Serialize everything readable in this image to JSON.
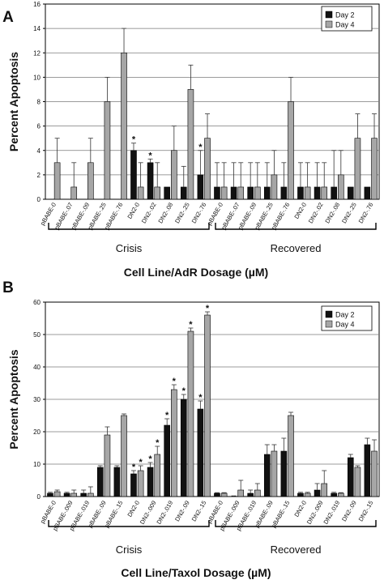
{
  "colors": {
    "day2": "#111111",
    "day4": "#a6a6a6",
    "grid": "#7a7a7a",
    "text": "#111111"
  },
  "chart_data": [
    {
      "panel_letter": "A",
      "type": "bar",
      "ylabel": "Percent Apoptosis",
      "xlabel": "Cell Line/AdR Dosage (µM)",
      "ylim": [
        0,
        16
      ],
      "yticks": [
        0,
        2,
        4,
        6,
        8,
        10,
        12,
        14,
        16
      ],
      "grid": true,
      "legend": {
        "position": "top-right",
        "entries": [
          "Day 2",
          "Day 4"
        ]
      },
      "groups": [
        "Crisis",
        "Recovered"
      ],
      "categories": [
        "pBABE-0",
        "pBABE-.07",
        "pBABE-.09",
        "pBABE-.25",
        "pBABE-.76",
        "DN2-0",
        "DN2-.02",
        "DN2-.08",
        "DN2-.25",
        "DN2-.76",
        "pBABE-0",
        "pBABE-.07",
        "pBABE-.09",
        "pBABE-.25",
        "pBABE-.76",
        "DN2-0",
        "DN2-.02",
        "DN2-.08",
        "DN2-.25",
        "DN2-.76"
      ],
      "series": [
        {
          "name": "Day 2",
          "values": [
            0,
            0,
            0,
            0,
            0,
            4,
            3,
            1,
            1,
            2,
            1,
            1,
            1,
            1,
            1,
            1,
            1,
            1,
            1,
            1
          ],
          "errors": [
            0,
            0,
            0,
            0,
            0,
            0.6,
            0.3,
            0,
            1.7,
            2,
            2,
            2,
            2,
            2,
            2,
            2,
            2,
            3,
            0,
            0
          ]
        },
        {
          "name": "Day 4",
          "values": [
            3,
            1,
            3,
            8,
            12,
            1,
            1,
            4,
            9,
            5,
            1,
            1,
            1,
            2,
            8,
            1,
            1,
            2,
            5,
            5
          ],
          "errors": [
            2,
            2,
            2,
            2,
            2,
            2,
            2,
            2,
            2,
            2,
            2,
            2,
            2,
            2,
            2,
            2,
            2,
            2,
            2,
            2
          ]
        }
      ],
      "asterisks": [
        {
          "series": 0,
          "index": 5
        },
        {
          "series": 0,
          "index": 6
        },
        {
          "series": 0,
          "index": 9
        }
      ]
    },
    {
      "panel_letter": "B",
      "type": "bar",
      "ylabel": "Percent Apoptosis",
      "xlabel": "Cell Line/Taxol Dosage (µM)",
      "ylim": [
        0,
        60
      ],
      "yticks": [
        0,
        10,
        20,
        30,
        40,
        50,
        60
      ],
      "grid": true,
      "legend": {
        "position": "top-right",
        "entries": [
          "Day 2",
          "Day 4"
        ]
      },
      "groups": [
        "Crisis",
        "Recovered"
      ],
      "categories": [
        "pBABE-0",
        "pBABE-.009",
        "pBABE-.019",
        "pBABE-.09",
        "pBABE-.15",
        "DN2-0",
        "DN2-.009",
        "DN2-.019",
        "DN2-.09",
        "DN2-.15",
        "pBABE-0",
        "pBABE-.009",
        "pBABE-.019",
        "pBABE-.09",
        "pBABE-.15",
        "DN2-0",
        "DN2-.009",
        "DN2-.019",
        "DN2-.09",
        "DN2-.15"
      ],
      "series": [
        {
          "name": "Day 2",
          "values": [
            1,
            1,
            1,
            9,
            9,
            7,
            9,
            22,
            30,
            27,
            1,
            0,
            1,
            13,
            14,
            1,
            2,
            1,
            12,
            16
          ],
          "errors": [
            0.3,
            0.3,
            1,
            0.5,
            0.5,
            1,
            1.5,
            2,
            1.5,
            2.5,
            0.2,
            0.2,
            1,
            3,
            4,
            0.3,
            2,
            0.3,
            1,
            2
          ]
        },
        {
          "name": "Day 4",
          "values": [
            1.5,
            1,
            1,
            19,
            25,
            8,
            13,
            33,
            51,
            56,
            1,
            2,
            2,
            14,
            25,
            1,
            4,
            1,
            9,
            14
          ],
          "errors": [
            0.5,
            1,
            2,
            2.5,
            0.5,
            1.5,
            2.5,
            1.5,
            1,
            1,
            0.2,
            3,
            2,
            2,
            1,
            0.3,
            4,
            0.2,
            0.5,
            3.5
          ]
        }
      ],
      "asterisks": [
        {
          "series": 0,
          "index": 5
        },
        {
          "series": 1,
          "index": 5
        },
        {
          "series": 0,
          "index": 6
        },
        {
          "series": 1,
          "index": 6
        },
        {
          "series": 0,
          "index": 7
        },
        {
          "series": 1,
          "index": 7
        },
        {
          "series": 0,
          "index": 8
        },
        {
          "series": 1,
          "index": 8
        },
        {
          "series": 0,
          "index": 9
        },
        {
          "series": 1,
          "index": 9
        }
      ]
    }
  ]
}
